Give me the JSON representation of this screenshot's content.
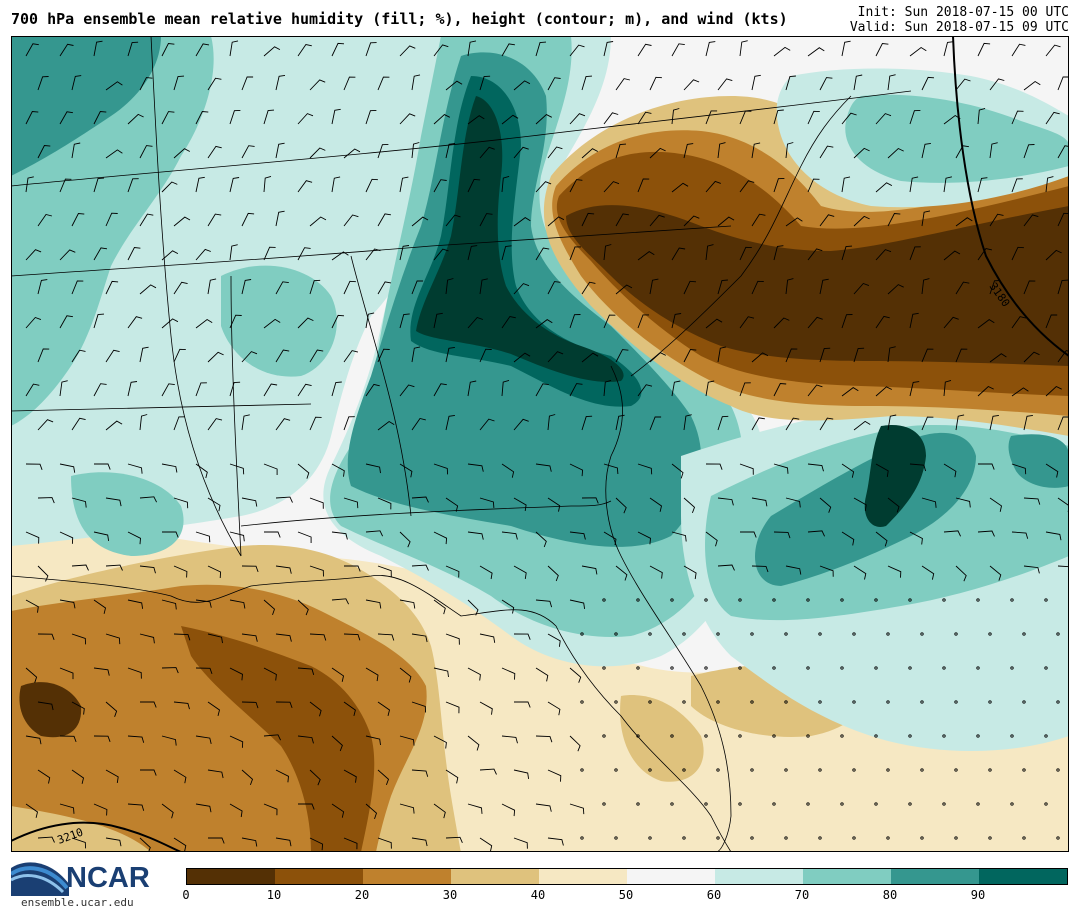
{
  "header": {
    "title": "700 hPa ensemble mean relative humidity (fill; %), height (contour; m), and wind (kts)",
    "init": "Init: Sun 2018-07-15 00 UTC",
    "valid": "Valid: Sun 2018-07-15 09 UTC"
  },
  "contour_labels": [
    "3180",
    "3210"
  ],
  "logo": {
    "name": "NCAR",
    "url": "ensemble.ucar.edu"
  },
  "colorbar": {
    "colors": [
      "#543005",
      "#8c510a",
      "#bf812d",
      "#dfc27d",
      "#f6e8c3",
      "#f5f5f5",
      "#c7eae5",
      "#80cdc1",
      "#35978f",
      "#01665e",
      "#003c30"
    ],
    "tick_labels": [
      "0",
      "10",
      "20",
      "30",
      "40",
      "50",
      "60",
      "70",
      "80",
      "90"
    ]
  },
  "legend_colors": {
    "very_dry": "#543005",
    "dry": "#8c510a",
    "mid_dry": "#bf812d",
    "tan": "#dfc27d",
    "light_tan": "#f6e8c3",
    "neutral": "#f5f5f5",
    "light_teal": "#c7eae5",
    "teal": "#80cdc1",
    "mid_teal": "#35978f",
    "dark_teal": "#01665e",
    "very_moist": "#003c30"
  }
}
